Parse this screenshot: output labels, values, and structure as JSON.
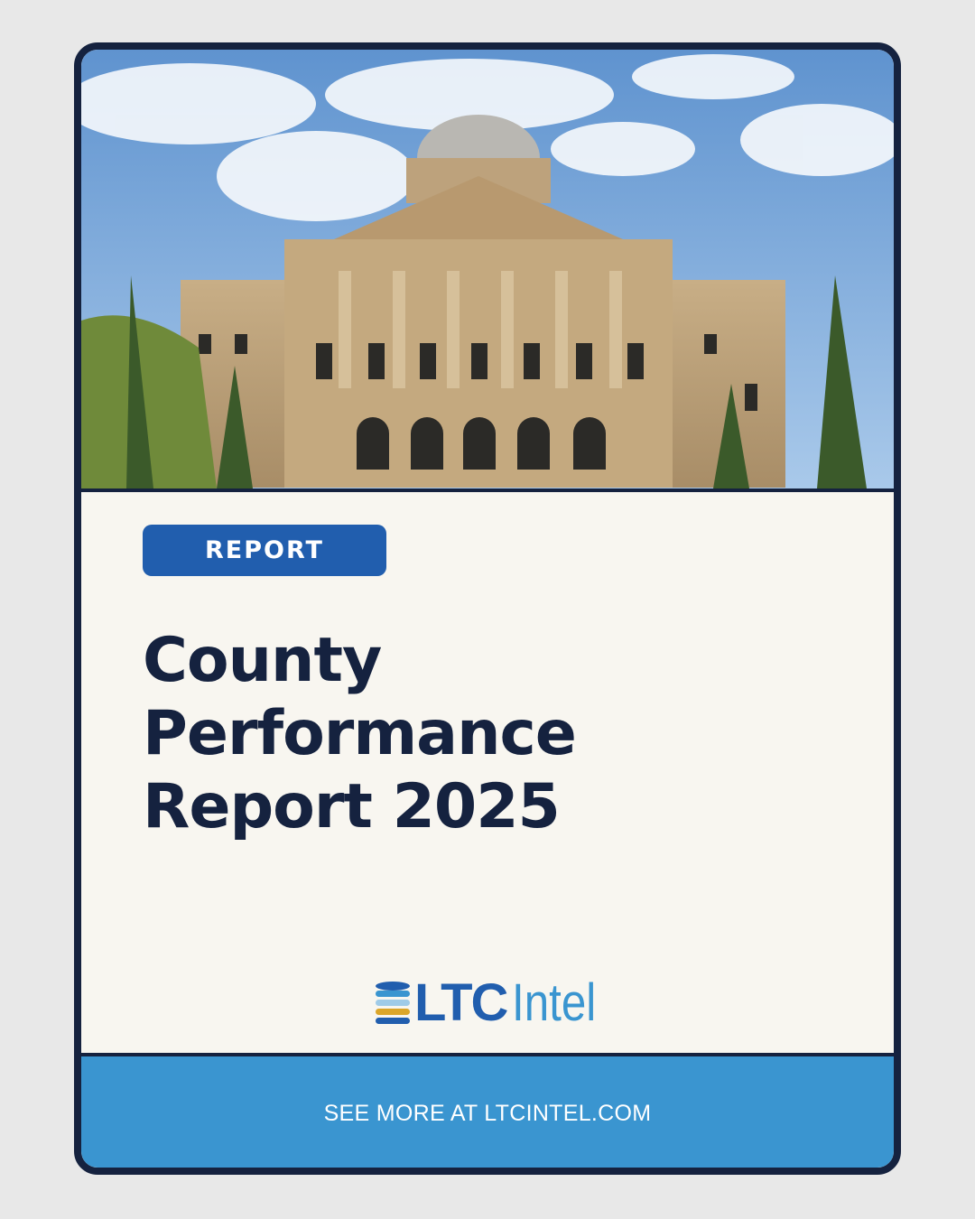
{
  "cover": {
    "image_alt": "courthouse-photo",
    "badge": "REPORT",
    "title_lines": [
      "County",
      "Performance",
      "Report 2025"
    ],
    "logo": {
      "part1": "LTC",
      "part2": "Intel"
    },
    "footer": "SEE MORE AT LTCINTEL.COM"
  },
  "colors": {
    "navy": "#15223f",
    "badge_blue": "#215eae",
    "footer_blue": "#3a95d0",
    "cream": "#f8f6f0",
    "logo_gold": "#dba62a"
  }
}
